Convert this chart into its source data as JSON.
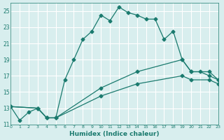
{
  "xlabel": "Humidex (Indice chaleur)",
  "bg_color": "#d8eeee",
  "grid_color": "#ffffff",
  "line_color": "#1a7a6e",
  "xlim": [
    0,
    23
  ],
  "ylim": [
    11,
    26
  ],
  "yticks": [
    11,
    13,
    15,
    17,
    19,
    21,
    23,
    25
  ],
  "xticks": [
    0,
    1,
    2,
    3,
    4,
    5,
    6,
    7,
    8,
    9,
    10,
    11,
    12,
    13,
    14,
    15,
    16,
    17,
    18,
    19,
    20,
    21,
    22,
    23
  ],
  "series": [
    {
      "x": [
        0,
        1,
        2,
        3,
        4,
        5,
        6,
        7,
        8,
        9,
        10,
        11,
        12,
        13,
        14,
        15,
        16,
        17,
        18,
        19,
        20,
        21,
        22,
        23
      ],
      "y": [
        13.2,
        11.5,
        12.5,
        13.0,
        11.8,
        11.8,
        16.5,
        19.0,
        21.5,
        22.5,
        24.5,
        23.8,
        25.5,
        24.8,
        24.5,
        24.0,
        24.0,
        21.5,
        22.5,
        19.0,
        17.5,
        17.5,
        17.0,
        16.5
      ]
    },
    {
      "x": [
        0,
        3,
        4,
        5,
        10,
        14,
        19,
        20,
        22,
        23
      ],
      "y": [
        13.2,
        13.0,
        11.8,
        11.8,
        15.5,
        17.5,
        19.0,
        17.5,
        17.5,
        16.5
      ]
    },
    {
      "x": [
        0,
        3,
        4,
        5,
        10,
        14,
        19,
        20,
        22,
        23
      ],
      "y": [
        13.2,
        13.0,
        11.8,
        11.8,
        14.5,
        16.0,
        17.0,
        16.5,
        16.5,
        16.0
      ]
    }
  ]
}
